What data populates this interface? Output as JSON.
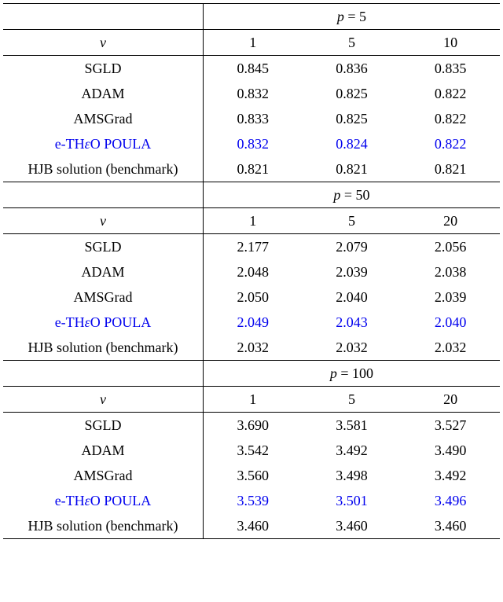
{
  "colors": {
    "text": "#000000",
    "highlight": "#0000ee",
    "rule": "#000000",
    "bg": "#ffffff"
  },
  "fonts": {
    "family": "Times New Roman",
    "size_pt": 14,
    "style_header_var": "italic"
  },
  "param_label": "ν",
  "sections": [
    {
      "header_html": "p = 5",
      "nu_values": [
        "1",
        "5",
        "10"
      ],
      "rows": [
        {
          "label": "SGLD",
          "vals": [
            "0.845",
            "0.836",
            "0.835"
          ],
          "hl": false
        },
        {
          "label": "ADAM",
          "vals": [
            "0.832",
            "0.825",
            "0.822"
          ],
          "hl": false
        },
        {
          "label": "AMSGrad",
          "vals": [
            "0.833",
            "0.825",
            "0.822"
          ],
          "hl": false
        },
        {
          "label": "e-THεO POULA",
          "vals": [
            "0.832",
            "0.824",
            "0.822"
          ],
          "hl": true
        },
        {
          "label": "HJB solution (benchmark)",
          "vals": [
            "0.821",
            "0.821",
            "0.821"
          ],
          "hl": false
        }
      ]
    },
    {
      "header_html": "p = 50",
      "nu_values": [
        "1",
        "5",
        "20"
      ],
      "rows": [
        {
          "label": "SGLD",
          "vals": [
            "2.177",
            "2.079",
            "2.056"
          ],
          "hl": false
        },
        {
          "label": "ADAM",
          "vals": [
            "2.048",
            "2.039",
            "2.038"
          ],
          "hl": false
        },
        {
          "label": "AMSGrad",
          "vals": [
            "2.050",
            "2.040",
            "2.039"
          ],
          "hl": false
        },
        {
          "label": "e-THεO POULA",
          "vals": [
            "2.049",
            "2.043",
            "2.040"
          ],
          "hl": true
        },
        {
          "label": "HJB solution (benchmark)",
          "vals": [
            "2.032",
            "2.032",
            "2.032"
          ],
          "hl": false
        }
      ]
    },
    {
      "header_html": "p = 100",
      "nu_values": [
        "1",
        "5",
        "20"
      ],
      "rows": [
        {
          "label": "SGLD",
          "vals": [
            "3.690",
            "3.581",
            "3.527"
          ],
          "hl": false
        },
        {
          "label": "ADAM",
          "vals": [
            "3.542",
            "3.492",
            "3.490"
          ],
          "hl": false
        },
        {
          "label": "AMSGrad",
          "vals": [
            "3.560",
            "3.498",
            "3.492"
          ],
          "hl": false
        },
        {
          "label": "e-THεO POULA",
          "vals": [
            "3.539",
            "3.501",
            "3.496"
          ],
          "hl": true
        },
        {
          "label": "HJB solution (benchmark)",
          "vals": [
            "3.460",
            "3.460",
            "3.460"
          ],
          "hl": false
        }
      ]
    }
  ]
}
